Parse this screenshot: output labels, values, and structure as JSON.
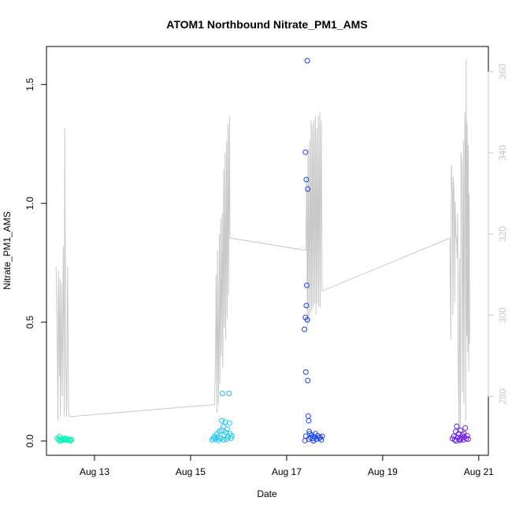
{
  "chart_data": {
    "type": "scatter",
    "title": "ATOM1 Northbound Nitrate_PM1_AMS",
    "xlabel": "Date",
    "ylabel": "Nitrate_PM1_AMS",
    "x_ticks": [
      {
        "label": "Aug 13",
        "value": 13
      },
      {
        "label": "Aug 15",
        "value": 15
      },
      {
        "label": "Aug 17",
        "value": 17
      },
      {
        "label": "Aug 19",
        "value": 19
      },
      {
        "label": "Aug 21",
        "value": 21
      }
    ],
    "xlim": [
      12.0,
      21.2
    ],
    "y_ticks": [
      0.0,
      0.5,
      1.0,
      1.5
    ],
    "y_tick_labels": [
      "0.0",
      "0.5",
      "1.0",
      "1.5"
    ],
    "ylim": [
      -0.06,
      1.66
    ],
    "y2_ticks": [
      280,
      300,
      320,
      340,
      360
    ],
    "y2lim": [
      265.5,
      366.2
    ],
    "y2_color": "#c8c8c8",
    "grid": false,
    "series": [
      {
        "color": "#00f5b8",
        "points": [
          [
            12.22,
            0.012
          ],
          [
            12.25,
            0.005
          ],
          [
            12.27,
            0.018
          ],
          [
            12.3,
            0.008
          ],
          [
            12.32,
            0.002
          ],
          [
            12.35,
            0.01
          ],
          [
            12.37,
            0.006
          ],
          [
            12.4,
            0.004
          ],
          [
            12.42,
            0.009
          ],
          [
            12.45,
            0.003
          ],
          [
            12.48,
            0.007
          ],
          [
            12.5,
            0.001
          ],
          [
            12.52,
            0.005
          ],
          [
            12.28,
            0.0
          ],
          [
            12.38,
            0.011
          ]
        ]
      },
      {
        "color": "#18c4f0",
        "points": [
          [
            15.45,
            0.005
          ],
          [
            15.48,
            0.012
          ],
          [
            15.5,
            0.02
          ],
          [
            15.52,
            0.008
          ],
          [
            15.55,
            0.03
          ],
          [
            15.57,
            0.015
          ],
          [
            15.6,
            0.04
          ],
          [
            15.62,
            0.01
          ],
          [
            15.65,
            0.085
          ],
          [
            15.66,
            0.2
          ],
          [
            15.68,
            0.06
          ],
          [
            15.7,
            0.025
          ],
          [
            15.72,
            0.08
          ],
          [
            15.74,
            0.035
          ],
          [
            15.76,
            0.05
          ],
          [
            15.78,
            0.018
          ],
          [
            15.8,
            0.2
          ],
          [
            15.81,
            0.075
          ],
          [
            15.82,
            0.03
          ],
          [
            15.84,
            0.012
          ],
          [
            15.86,
            0.022
          ],
          [
            15.58,
            0.002
          ],
          [
            15.64,
            0.045
          ],
          [
            15.69,
            0.005
          ],
          [
            15.75,
            0.008
          ]
        ]
      },
      {
        "color": "#1c44f0",
        "points": [
          [
            17.37,
            0.47
          ],
          [
            17.39,
            0.52
          ],
          [
            17.39,
            1.215
          ],
          [
            17.4,
            0.29
          ],
          [
            17.41,
            0.57
          ],
          [
            17.41,
            1.1
          ],
          [
            17.42,
            0.655
          ],
          [
            17.43,
            1.6
          ],
          [
            17.43,
            0.51
          ],
          [
            17.44,
            1.06
          ],
          [
            17.44,
            0.255
          ],
          [
            17.45,
            0.105
          ],
          [
            17.46,
            0.085
          ],
          [
            17.47,
            0.04
          ],
          [
            17.48,
            0.03
          ],
          [
            17.4,
            0.02
          ],
          [
            17.5,
            0.015
          ],
          [
            17.52,
            0.025
          ],
          [
            17.55,
            0.01
          ],
          [
            17.58,
            0.018
          ],
          [
            17.6,
            0.03
          ],
          [
            17.62,
            0.008
          ],
          [
            17.65,
            0.022
          ],
          [
            17.68,
            0.012
          ],
          [
            17.7,
            0.015
          ],
          [
            17.72,
            0.005
          ],
          [
            17.74,
            0.02
          ],
          [
            17.38,
            0.002
          ],
          [
            17.46,
            0.008
          ],
          [
            17.56,
            0.001
          ]
        ]
      },
      {
        "color": "#6a1cf0",
        "points": [
          [
            20.45,
            0.01
          ],
          [
            20.48,
            0.02
          ],
          [
            20.5,
            0.005
          ],
          [
            20.52,
            0.04
          ],
          [
            20.54,
            0.062
          ],
          [
            20.56,
            0.015
          ],
          [
            20.58,
            0.03
          ],
          [
            20.6,
            0.008
          ],
          [
            20.62,
            0.045
          ],
          [
            20.64,
            0.012
          ],
          [
            20.66,
            0.025
          ],
          [
            20.68,
            0.005
          ],
          [
            20.7,
            0.018
          ],
          [
            20.72,
            0.055
          ],
          [
            20.74,
            0.01
          ],
          [
            20.76,
            0.022
          ],
          [
            20.78,
            0.008
          ],
          [
            20.53,
            0.0
          ],
          [
            20.61,
            0.003
          ],
          [
            20.69,
            0.032
          ]
        ]
      }
    ],
    "secondary_line": {
      "color": "#c8c8c8",
      "points": [
        [
          12.2,
          312
        ],
        [
          12.22,
          298
        ],
        [
          12.24,
          274
        ],
        [
          12.25,
          311
        ],
        [
          12.27,
          285
        ],
        [
          12.28,
          309
        ],
        [
          12.29,
          275
        ],
        [
          12.31,
          308
        ],
        [
          12.33,
          280
        ],
        [
          12.35,
          317
        ],
        [
          12.37,
          275
        ],
        [
          12.38,
          346
        ],
        [
          12.4,
          290
        ],
        [
          12.42,
          275
        ],
        [
          12.44,
          312
        ],
        [
          12.46,
          276
        ],
        [
          12.48,
          275
        ],
        [
          15.5,
          278
        ],
        [
          15.52,
          289
        ],
        [
          15.53,
          310
        ],
        [
          15.55,
          276
        ],
        [
          15.56,
          316
        ],
        [
          15.58,
          278
        ],
        [
          15.6,
          320
        ],
        [
          15.61,
          283
        ],
        [
          15.63,
          324
        ],
        [
          15.64,
          290
        ],
        [
          15.66,
          325
        ],
        [
          15.67,
          287
        ],
        [
          15.69,
          336
        ],
        [
          15.7,
          297
        ],
        [
          15.72,
          340
        ],
        [
          15.73,
          294
        ],
        [
          15.75,
          343
        ],
        [
          15.76,
          299
        ],
        [
          15.78,
          347
        ],
        [
          15.79,
          305
        ],
        [
          15.81,
          349
        ],
        [
          15.82,
          319
        ],
        [
          17.4,
          316
        ],
        [
          17.42,
          334
        ],
        [
          17.43,
          297
        ],
        [
          17.45,
          341
        ],
        [
          17.46,
          298
        ],
        [
          17.48,
          343
        ],
        [
          17.49,
          300
        ],
        [
          17.51,
          348
        ],
        [
          17.52,
          301
        ],
        [
          17.54,
          347
        ],
        [
          17.55,
          302
        ],
        [
          17.57,
          348
        ],
        [
          17.58,
          303
        ],
        [
          17.6,
          349
        ],
        [
          17.61,
          300
        ],
        [
          17.63,
          346
        ],
        [
          17.64,
          303
        ],
        [
          17.66,
          349
        ],
        [
          17.67,
          302
        ],
        [
          17.69,
          350
        ],
        [
          17.7,
          302
        ],
        [
          17.72,
          348
        ],
        [
          17.74,
          306
        ],
        [
          20.4,
          319
        ],
        [
          20.42,
          294
        ],
        [
          20.43,
          337
        ],
        [
          20.45,
          330
        ],
        [
          20.46,
          300
        ],
        [
          20.47,
          334
        ],
        [
          20.49,
          328
        ],
        [
          20.5,
          303
        ],
        [
          20.51,
          328
        ],
        [
          20.52,
          320
        ],
        [
          20.54,
          318
        ],
        [
          20.55,
          314
        ],
        [
          20.56,
          325
        ],
        [
          20.57,
          290
        ],
        [
          20.59,
          271
        ],
        [
          20.6,
          314
        ],
        [
          20.62,
          272
        ],
        [
          20.63,
          340
        ],
        [
          20.65,
          336
        ],
        [
          20.66,
          281
        ],
        [
          20.68,
          343
        ],
        [
          20.69,
          278
        ],
        [
          20.71,
          350
        ],
        [
          20.72,
          342
        ],
        [
          20.73,
          274
        ],
        [
          20.74,
          363
        ],
        [
          20.75,
          295
        ],
        [
          20.76,
          347
        ],
        [
          20.77,
          291
        ],
        [
          20.78,
          342
        ],
        [
          20.79,
          286
        ],
        [
          20.8,
          330
        ],
        [
          20.81,
          293
        ]
      ]
    }
  }
}
